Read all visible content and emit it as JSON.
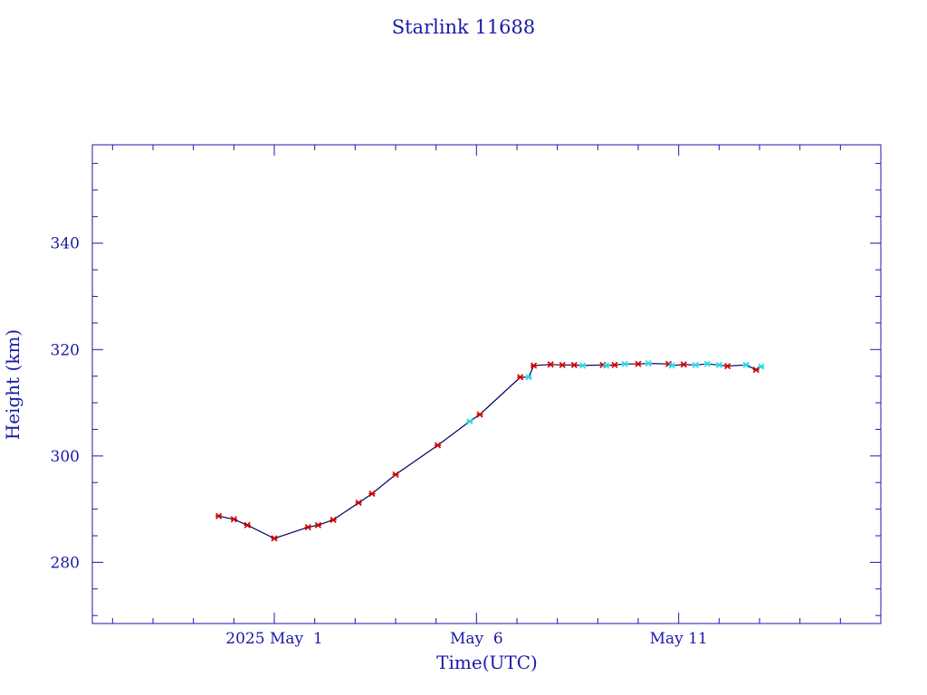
{
  "chart_data": {
    "type": "line",
    "title": "Starlink 11688",
    "xlabel": "Time(UTC)",
    "ylabel": "Height (km)",
    "x_axis": "date",
    "xlim": [
      "2025-04-26T12:00",
      "2025-05-16T00:00"
    ],
    "ylim": [
      268.5,
      358.5
    ],
    "y_ticks": [
      280,
      300,
      320,
      340
    ],
    "x_ticks": [
      {
        "date": "2025-05-01T00:00",
        "label": "2025 May  1"
      },
      {
        "date": "2025-05-06T00:00",
        "label": "May  6"
      },
      {
        "date": "2025-05-11T00:00",
        "label": "May 11"
      }
    ],
    "grid": false,
    "colors": {
      "axis": "#1a1aa8",
      "text": "#1a1aa8",
      "line": "#000066",
      "series_red": "#cc0000",
      "series_cyan": "#22d8e8"
    },
    "series": [
      {
        "marker_color": "red",
        "points": [
          {
            "x": "2025-04-29T15:00",
            "y": 288.7
          },
          {
            "x": "2025-04-30T00:00",
            "y": 288.1
          },
          {
            "x": "2025-04-30T08:00",
            "y": 287.0
          },
          {
            "x": "2025-05-01T00:00",
            "y": 284.5
          },
          {
            "x": "2025-05-01T20:00",
            "y": 286.6
          },
          {
            "x": "2025-05-02T02:00",
            "y": 287.0
          },
          {
            "x": "2025-05-02T11:00",
            "y": 288.0
          },
          {
            "x": "2025-05-03T02:00",
            "y": 291.2
          },
          {
            "x": "2025-05-03T10:00",
            "y": 292.9
          },
          {
            "x": "2025-05-04T00:00",
            "y": 296.5
          },
          {
            "x": "2025-05-05T01:00",
            "y": 302.0
          },
          {
            "x": "2025-05-06T02:00",
            "y": 307.8
          },
          {
            "x": "2025-05-07T02:00",
            "y": 314.8
          },
          {
            "x": "2025-05-07T10:00",
            "y": 317.0
          },
          {
            "x": "2025-05-07T20:00",
            "y": 317.2
          },
          {
            "x": "2025-05-08T03:00",
            "y": 317.1
          },
          {
            "x": "2025-05-08T10:00",
            "y": 317.1
          },
          {
            "x": "2025-05-09T03:00",
            "y": 317.1
          },
          {
            "x": "2025-05-09T10:00",
            "y": 317.1
          },
          {
            "x": "2025-05-10T00:00",
            "y": 317.3
          },
          {
            "x": "2025-05-10T18:00",
            "y": 317.3
          },
          {
            "x": "2025-05-11T03:00",
            "y": 317.2
          },
          {
            "x": "2025-05-12T05:00",
            "y": 316.9
          },
          {
            "x": "2025-05-12T22:00",
            "y": 316.2
          }
        ]
      },
      {
        "marker_color": "cyan",
        "points": [
          {
            "x": "2025-05-05T20:00",
            "y": 306.5
          },
          {
            "x": "2025-05-07T07:00",
            "y": 314.8
          },
          {
            "x": "2025-05-08T15:00",
            "y": 317.0
          },
          {
            "x": "2025-05-09T05:00",
            "y": 317.0
          },
          {
            "x": "2025-05-09T16:00",
            "y": 317.3
          },
          {
            "x": "2025-05-10T06:00",
            "y": 317.4
          },
          {
            "x": "2025-05-10T20:00",
            "y": 317.0
          },
          {
            "x": "2025-05-11T10:00",
            "y": 317.1
          },
          {
            "x": "2025-05-11T17:00",
            "y": 317.3
          },
          {
            "x": "2025-05-12T00:00",
            "y": 317.1
          },
          {
            "x": "2025-05-12T16:00",
            "y": 317.1
          },
          {
            "x": "2025-05-13T01:00",
            "y": 316.8
          }
        ]
      }
    ]
  }
}
